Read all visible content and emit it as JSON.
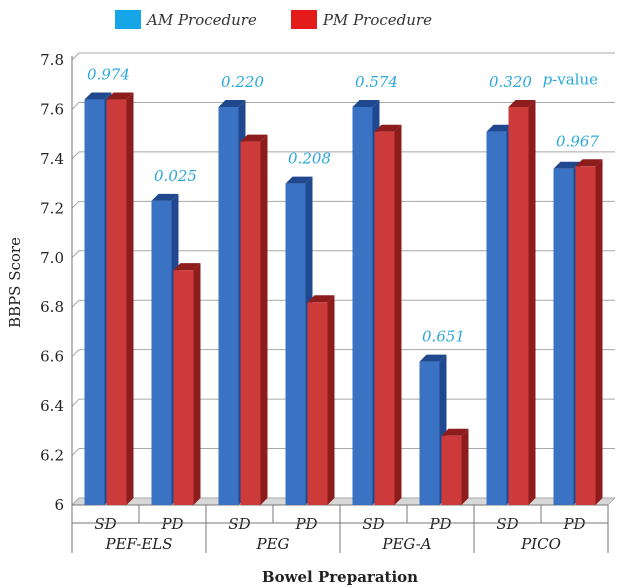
{
  "legend": {
    "am_label": "AM Procedure",
    "pm_label": "PM Procedure"
  },
  "colors": {
    "am": "#3a72c4",
    "am_side": "#20488f",
    "am_legend": "#14a6e6",
    "pm": "#cc3a3a",
    "pm_side": "#8d1d1d",
    "pm_legend": "#e31b1b",
    "pvalue": "#2aa8dc"
  },
  "chart_data": {
    "type": "bar",
    "ylabel": "BBPS Score",
    "xlabel": "Bowel Preparation",
    "ylim": [
      6,
      7.8
    ],
    "yticks": [
      "6",
      "6.2",
      "6.4",
      "6.6",
      "6.8",
      "7.0",
      "7.2",
      "7.4",
      "7.6",
      "7.8"
    ],
    "pvalue_label_prefix": "p",
    "pvalue_label_suffix": "-value",
    "groups": [
      "PEF-ELS",
      "PEG",
      "PEG-A",
      "PICO"
    ],
    "categories": [
      "SD",
      "PD",
      "SD",
      "PD",
      "SD",
      "PD",
      "SD",
      "PD"
    ],
    "series": [
      {
        "name": "AM Procedure",
        "values": [
          7.64,
          7.23,
          7.61,
          7.3,
          7.61,
          6.58,
          7.51,
          7.36
        ]
      },
      {
        "name": "PM Procedure",
        "values": [
          7.64,
          6.95,
          7.47,
          6.82,
          7.51,
          6.28,
          7.61,
          7.37
        ]
      }
    ],
    "pvalues": [
      "0.974",
      "0.025",
      "0.220",
      "0.208",
      "0.574",
      "0.651",
      "0.320",
      "0.967"
    ]
  }
}
